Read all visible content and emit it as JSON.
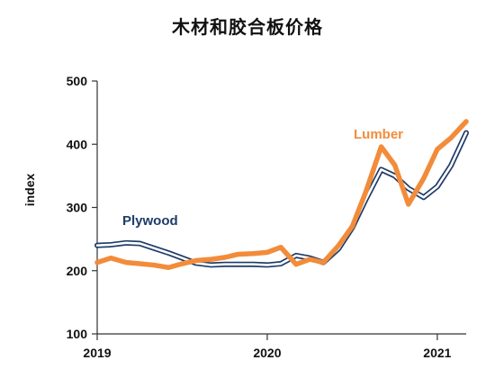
{
  "chart_data": {
    "type": "line",
    "title": "木材和胶合板价格",
    "xlabel": "",
    "ylabel": "index",
    "ylim": [
      100,
      500
    ],
    "yticks": [
      100,
      200,
      300,
      400,
      500
    ],
    "xlim": [
      2019.0,
      2021.17
    ],
    "xticks": [
      {
        "value": 2019,
        "label": "2019"
      },
      {
        "value": 2020,
        "label": "2020"
      },
      {
        "value": 2021,
        "label": "2021"
      }
    ],
    "grid": false,
    "legend": "inline labels",
    "series": [
      {
        "name": "Plywood",
        "color": "#1f3c68",
        "style": "double-outline",
        "x": [
          2019.0,
          2019.08,
          2019.17,
          2019.25,
          2019.33,
          2019.42,
          2019.5,
          2019.58,
          2019.67,
          2019.75,
          2019.83,
          2019.92,
          2020.0,
          2020.08,
          2020.17,
          2020.25,
          2020.33,
          2020.42,
          2020.5,
          2020.58,
          2020.67,
          2020.75,
          2020.83,
          2020.92,
          2021.0,
          2021.08,
          2021.17
        ],
        "values": [
          240,
          241,
          244,
          243,
          236,
          228,
          220,
          212,
          209,
          210,
          210,
          210,
          209,
          211,
          224,
          220,
          213,
          235,
          268,
          313,
          360,
          350,
          330,
          316,
          333,
          366,
          418
        ]
      },
      {
        "name": "Lumber",
        "color": "#f28c3a",
        "style": "thick",
        "x": [
          2019.0,
          2019.08,
          2019.17,
          2019.25,
          2019.33,
          2019.42,
          2019.5,
          2019.58,
          2019.67,
          2019.75,
          2019.83,
          2019.92,
          2020.0,
          2020.08,
          2020.17,
          2020.25,
          2020.33,
          2020.42,
          2020.5,
          2020.58,
          2020.67,
          2020.75,
          2020.83,
          2020.92,
          2021.0,
          2021.08,
          2021.17
        ],
        "values": [
          213,
          220,
          213,
          211,
          209,
          205,
          211,
          216,
          218,
          221,
          226,
          227,
          229,
          237,
          210,
          218,
          213,
          240,
          270,
          325,
          396,
          367,
          305,
          346,
          392,
          410,
          436
        ]
      }
    ]
  }
}
